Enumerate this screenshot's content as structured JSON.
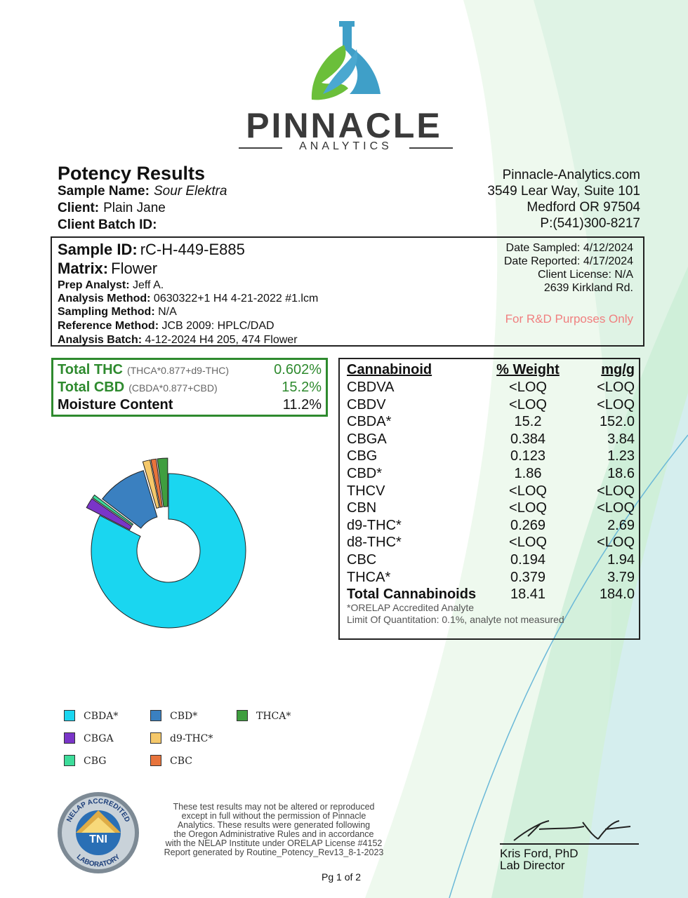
{
  "brand": {
    "name": "PINNACLE",
    "sub": "ANALYTICS"
  },
  "report": {
    "title": "Potency Results",
    "sample_name_label": "Sample Name:",
    "sample_name": "Sour Elektra",
    "client_label": "Client:",
    "client": "Plain Jane",
    "client_batch_label": "Client Batch ID:"
  },
  "contact": {
    "website": "Pinnacle-Analytics.com",
    "address1": "3549 Lear Way, Suite 101",
    "address2": "Medford OR 97504",
    "phone": "P:(541)300-8217"
  },
  "sample": {
    "id_label": "Sample ID:",
    "id": "rC-H-449-E885",
    "matrix_label": "Matrix:",
    "matrix": "Flower",
    "prep_analyst_label": "Prep Analyst:",
    "prep_analyst": "Jeff A.",
    "analysis_method_label": "Analysis Method:",
    "analysis_method": "0630322+1 H4 4-21-2022 #1.lcm",
    "sampling_method_label": "Sampling Method:",
    "sampling_method": "N/A",
    "reference_method_label": "Reference Method:",
    "reference_method": "JCB 2009: HPLC/DAD",
    "analysis_batch_label": "Analysis Batch:",
    "analysis_batch": "4-12-2024 H4 205, 474 Flower",
    "date_sampled": "Date Sampled:  4/12/2024",
    "date_reported": "Date Reported: 4/17/2024",
    "client_license": "Client License: N/A",
    "license_address": "2639 Kirkland Rd.",
    "rd_note": "For R&D Purposes Only"
  },
  "summary": {
    "thc_label": "Total THC",
    "thc_formula": "(THCA*0.877+d9-THC)",
    "thc_value": "0.602%",
    "cbd_label": "Total CBD",
    "cbd_formula": "(CBDA*0.877+CBD)",
    "cbd_value": "15.2%",
    "moisture_label": "Moisture Content",
    "moisture_value": "11.2%"
  },
  "table": {
    "headers": [
      "Cannabinoid",
      "% Weight",
      "mg/g"
    ],
    "rows": [
      [
        "CBDVA",
        "<LOQ",
        "<LOQ"
      ],
      [
        "CBDV",
        "<LOQ",
        "<LOQ"
      ],
      [
        "CBDA*",
        "15.2",
        "152.0"
      ],
      [
        "CBGA",
        "0.384",
        "3.84"
      ],
      [
        "CBG",
        "0.123",
        "1.23"
      ],
      [
        "CBD*",
        "1.86",
        "18.6"
      ],
      [
        "THCV",
        "<LOQ",
        "<LOQ"
      ],
      [
        "CBN",
        "<LOQ",
        "<LOQ"
      ],
      [
        "d9-THC*",
        "0.269",
        "2.69"
      ],
      [
        "d8-THC*",
        "<LOQ",
        "<LOQ"
      ],
      [
        "CBC",
        "0.194",
        "1.94"
      ],
      [
        "THCA*",
        "0.379",
        "3.79"
      ]
    ],
    "total": [
      "Total Cannabinoids",
      "18.41",
      "184.0"
    ],
    "note1": "*ORELAP Accredited Analyte",
    "note2": "Limit Of Quantitation: 0.1%, analyte not measured"
  },
  "chart_data": {
    "type": "pie",
    "style": "donut with exploded small slices",
    "categories": [
      "CBDA*",
      "CBD*",
      "THCA*",
      "CBGA",
      "d9-THC*",
      "CBG",
      "CBC"
    ],
    "values": [
      15.2,
      1.86,
      0.379,
      0.384,
      0.269,
      0.123,
      0.194
    ],
    "colors": [
      "#1ad6f0",
      "#3a80c0",
      "#3f9e3f",
      "#7a35c8",
      "#f5c86a",
      "#3ddc9a",
      "#e8743c"
    ],
    "legend_position": "bottom"
  },
  "footer": {
    "badge_top": "NELAP ACCREDITED",
    "badge_center": "TNI",
    "badge_bottom": "LABORATORY",
    "disclaimer_lines": [
      "These test results may not be altered or reproduced",
      "except in full without the permission of Pinnacle",
      "Analytics. These results were generated following",
      "the Oregon Administrative Rules and in accordance",
      "with the NELAP Institute under ORELAP License #4152",
      "Report generated by Routine_Potency_Rev13_8-1-2023"
    ],
    "page": "Pg 1 of 2",
    "director_name": "Kris Ford, PhD",
    "director_title": "Lab Director"
  }
}
